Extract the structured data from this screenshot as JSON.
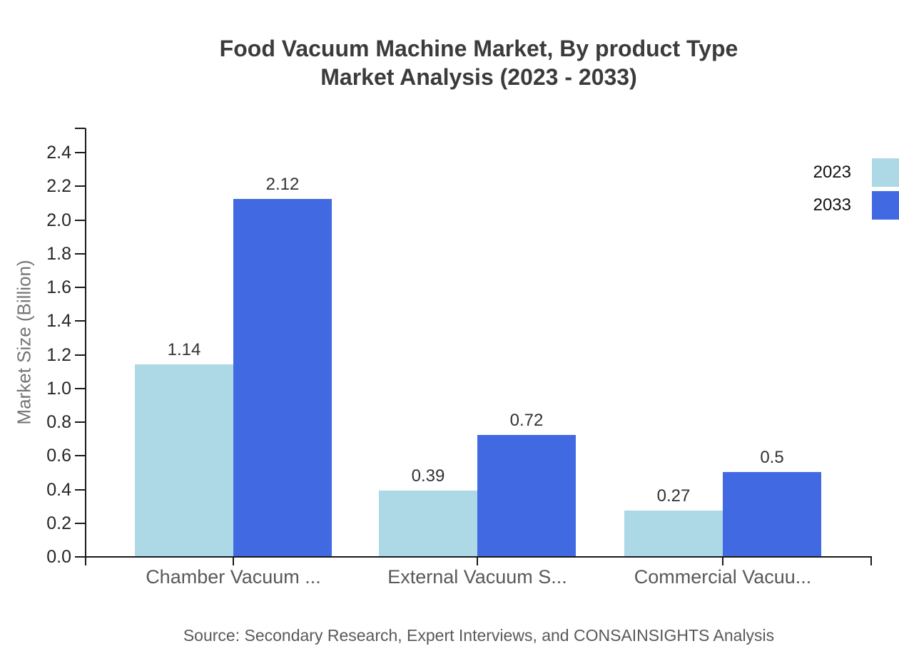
{
  "title": {
    "line1": "Food Vacuum Machine Market, By product Type",
    "line2": "Market Analysis (2023 - 2033)"
  },
  "source_note": "Source: Secondary Research, Expert Interviews, and CONSAINSIGHTS Analysis",
  "legend": {
    "position": "top-right-outside",
    "items": [
      {
        "label": "2023",
        "color": "#ADD8E6"
      },
      {
        "label": "2033",
        "color": "#4169E1"
      }
    ]
  },
  "chart_data": {
    "type": "bar",
    "title": "Food Vacuum Machine Market, By product Type Market Analysis (2023 - 2033)",
    "categories": [
      "Chamber Vacuum ...",
      "External Vacuum S...",
      "Commercial Vacuu..."
    ],
    "series": [
      {
        "name": "2023",
        "color": "#ADD8E6",
        "values": [
          1.14,
          0.39,
          0.27
        ]
      },
      {
        "name": "2033",
        "color": "#4169E1",
        "values": [
          2.12,
          0.72,
          0.5
        ]
      }
    ],
    "xlabel": "",
    "ylabel": "Market Size (Billion)",
    "ylim": [
      0.0,
      2.5
    ],
    "yticks": [
      "0.0",
      "0.2",
      "0.4",
      "0.6",
      "0.8",
      "1.0",
      "1.2",
      "1.4",
      "1.6",
      "1.8",
      "2.0",
      "2.2",
      "2.4"
    ],
    "grid": false,
    "legend_position": "top-right-outside",
    "value_labels_shown": true
  },
  "colors": {
    "background": "#ffffff",
    "title_text": "#3b3b3b",
    "tick_text": "#262626",
    "value_label_text": "#333333",
    "category_text": "#595959",
    "source_text": "#595959",
    "axis_label_text": "#757575",
    "axis_line": "#1a1a1a",
    "legend_text": "#111111",
    "series_2023": "#ADD8E6",
    "series_2033": "#4169E1"
  }
}
